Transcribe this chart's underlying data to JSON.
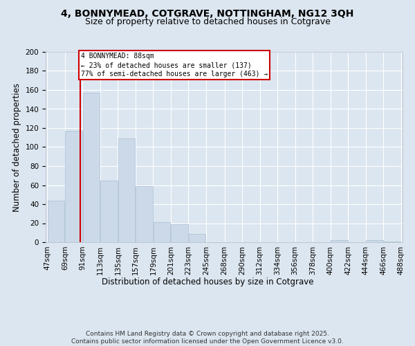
{
  "title": "4, BONNYMEAD, COTGRAVE, NOTTINGHAM, NG12 3QH",
  "subtitle": "Size of property relative to detached houses in Cotgrave",
  "xlabel": "Distribution of detached houses by size in Cotgrave",
  "ylabel": "Number of detached properties",
  "bar_color": "#ccd9e8",
  "bar_edge_color": "#a8bfd4",
  "bg_color": "#dce6f0",
  "plot_bg_color": "#dce6f0",
  "grid_color": "#ffffff",
  "vline_color": "#cc0000",
  "vline_x": 88,
  "annotation_text": "4 BONNYMEAD: 88sqm\n← 23% of detached houses are smaller (137)\n77% of semi-detached houses are larger (463) →",
  "annotation_box_color": "#ffffff",
  "annotation_box_edge": "#cc0000",
  "bins": [
    47,
    69,
    91,
    113,
    135,
    157,
    179,
    201,
    223,
    245,
    268,
    290,
    312,
    334,
    356,
    378,
    400,
    422,
    444,
    466,
    488
  ],
  "counts": [
    44,
    117,
    157,
    65,
    109,
    59,
    21,
    19,
    9,
    0,
    0,
    0,
    0,
    0,
    0,
    0,
    2,
    0,
    2,
    1
  ],
  "ylim": [
    0,
    200
  ],
  "yticks": [
    0,
    20,
    40,
    60,
    80,
    100,
    120,
    140,
    160,
    180,
    200
  ],
  "footer": "Contains HM Land Registry data © Crown copyright and database right 2025.\nContains public sector information licensed under the Open Government Licence v3.0.",
  "title_fontsize": 10,
  "subtitle_fontsize": 9,
  "label_fontsize": 8.5,
  "tick_fontsize": 7.5,
  "footer_fontsize": 6.5
}
